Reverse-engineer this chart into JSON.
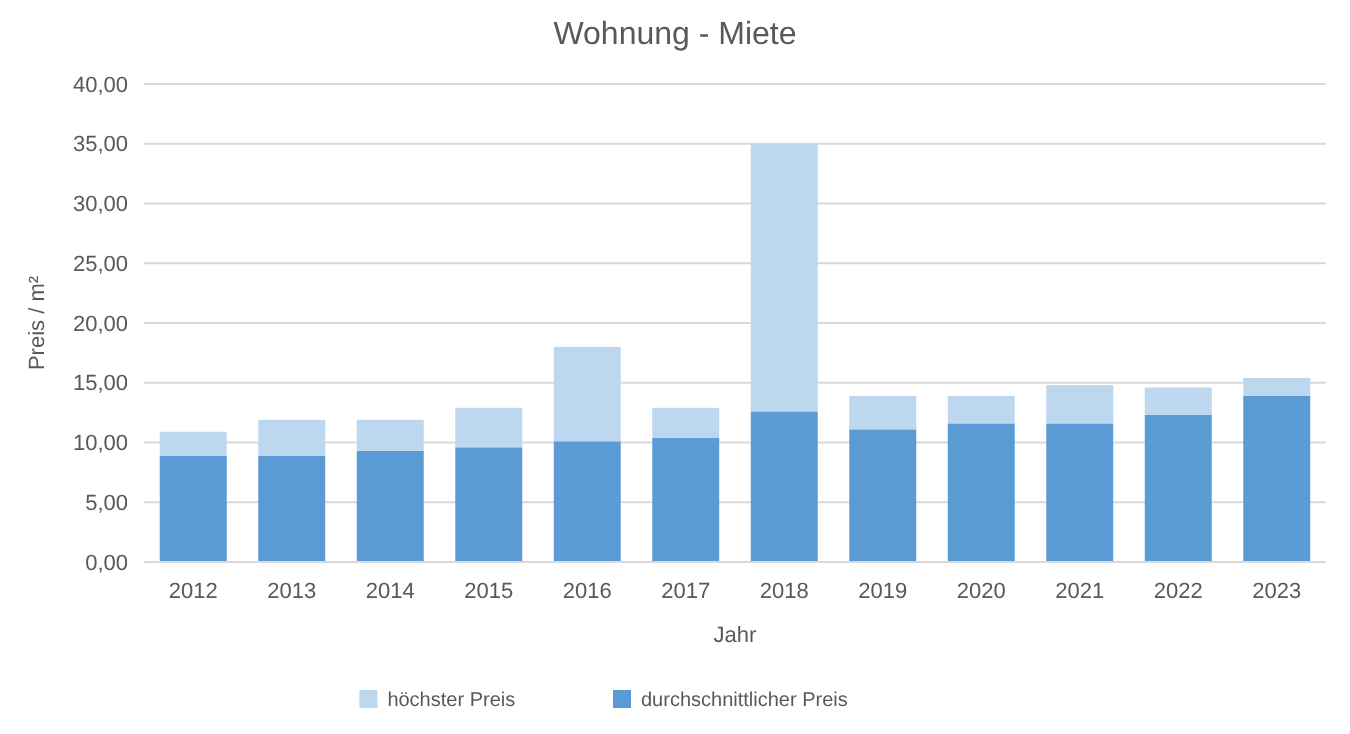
{
  "chart_data": {
    "type": "bar",
    "title": "Wohnung - Miete",
    "xlabel": "Jahr",
    "ylabel": "Preis / m²",
    "stacked": true,
    "categories": [
      "2012",
      "2013",
      "2014",
      "2015",
      "2016",
      "2017",
      "2018",
      "2019",
      "2020",
      "2021",
      "2022",
      "2023"
    ],
    "series": [
      {
        "name": "durchschnittlicher Preis",
        "color": "#5b9bd5",
        "values": [
          8.9,
          8.9,
          9.3,
          9.6,
          10.1,
          10.4,
          12.6,
          11.1,
          11.6,
          11.6,
          12.3,
          13.9
        ]
      },
      {
        "name": "höchster Preis",
        "color": "#bdd7ee",
        "values": [
          2.0,
          3.0,
          2.6,
          3.3,
          7.9,
          2.5,
          22.4,
          2.8,
          2.3,
          3.2,
          2.3,
          1.5
        ]
      }
    ],
    "ylim": [
      0,
      40
    ],
    "yticks": [
      {
        "value": 0,
        "label": "0,00"
      },
      {
        "value": 5,
        "label": "5,00"
      },
      {
        "value": 10,
        "label": "10,00"
      },
      {
        "value": 15,
        "label": "15,00"
      },
      {
        "value": 20,
        "label": "20,00"
      },
      {
        "value": 25,
        "label": "25,00"
      },
      {
        "value": 30,
        "label": "30,00"
      },
      {
        "value": 35,
        "label": "35,00"
      },
      {
        "value": 40,
        "label": "40,00"
      }
    ],
    "grid": "y",
    "legend": "bottom"
  }
}
